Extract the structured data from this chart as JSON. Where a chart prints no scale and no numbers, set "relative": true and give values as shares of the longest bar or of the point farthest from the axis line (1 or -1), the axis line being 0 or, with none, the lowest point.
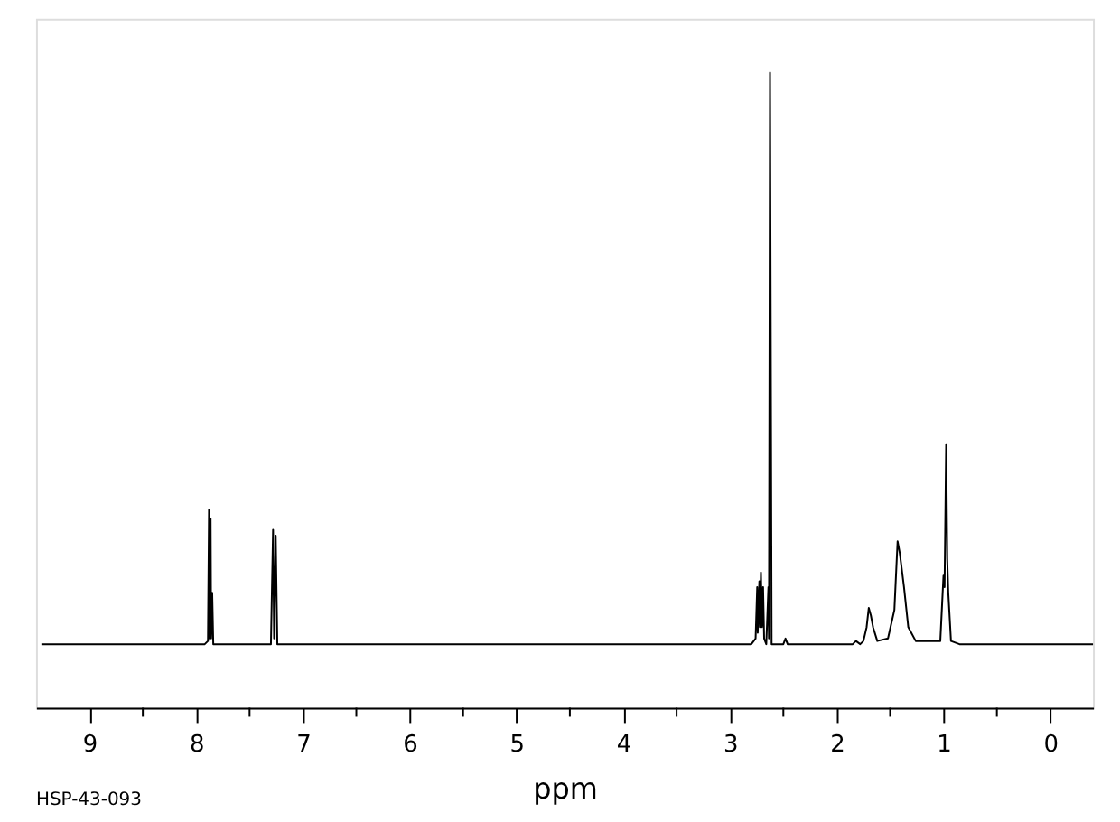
{
  "chart_data": {
    "type": "line",
    "relative": true,
    "xlabel": "ppm",
    "annotations": [
      "HSP-43-093"
    ],
    "xlim": [
      9.5,
      -0.4
    ],
    "xticks": [
      9,
      {
        "value": 8.5,
        "label": null
      },
      8,
      {
        "value": 7.5,
        "label": null
      },
      7,
      {
        "value": 6.5,
        "label": null
      },
      6,
      {
        "value": 5.5,
        "label": null
      },
      5,
      {
        "value": 4.5,
        "label": null
      },
      4,
      {
        "value": 3.5,
        "label": null
      },
      3,
      {
        "value": 2.5,
        "label": null
      },
      2,
      {
        "value": 1.5,
        "label": null
      },
      1,
      {
        "value": 0.5,
        "label": null
      },
      0
    ],
    "grid": false,
    "marker": "none",
    "line_style": "solid",
    "series": [
      {
        "color": "#000000",
        "x": [
          9.45,
          7.92,
          7.89,
          7.88,
          7.875,
          7.865,
          7.86,
          7.85,
          7.84,
          7.3,
          7.28,
          7.27,
          7.255,
          7.24,
          2.8,
          2.76,
          2.745,
          2.74,
          2.725,
          2.72,
          2.71,
          2.7,
          2.69,
          2.68,
          2.66,
          2.64,
          2.635,
          2.625,
          2.61,
          2.5,
          2.48,
          2.46,
          1.85,
          1.82,
          1.78,
          1.75,
          1.72,
          1.7,
          1.68,
          1.66,
          1.62,
          1.52,
          1.46,
          1.43,
          1.41,
          1.39,
          1.37,
          1.33,
          1.26,
          1.03,
          1.0,
          0.99,
          0.975,
          0.965,
          0.955,
          0.93,
          0.85,
          -0.4
        ],
        "values": [
          0.1,
          0.1,
          0.105,
          0.312,
          0.109,
          0.298,
          0.109,
          0.181,
          0.1,
          0.1,
          0.28,
          0.109,
          0.271,
          0.1,
          0.1,
          0.109,
          0.19,
          0.118,
          0.199,
          0.127,
          0.213,
          0.127,
          0.19,
          0.109,
          0.1,
          0.19,
          0.109,
          1.0,
          0.1,
          0.1,
          0.109,
          0.1,
          0.1,
          0.105,
          0.1,
          0.105,
          0.127,
          0.157,
          0.145,
          0.127,
          0.105,
          0.109,
          0.154,
          0.262,
          0.244,
          0.217,
          0.19,
          0.127,
          0.105,
          0.105,
          0.208,
          0.19,
          0.415,
          0.235,
          0.181,
          0.105,
          0.1,
          0.1
        ]
      }
    ]
  }
}
